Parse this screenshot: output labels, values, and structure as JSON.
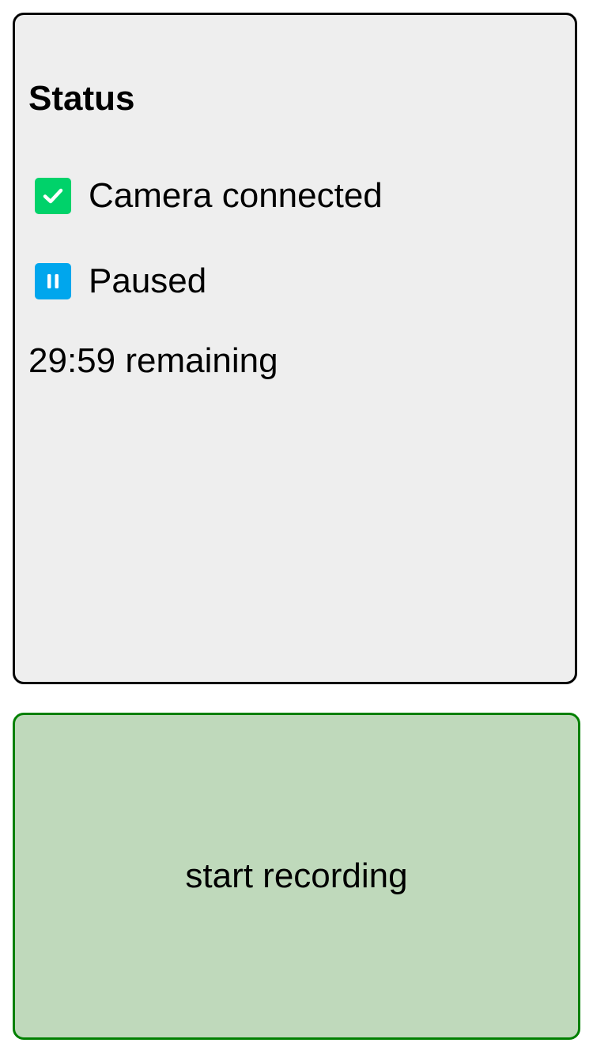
{
  "status": {
    "title": "Status",
    "items": [
      {
        "label": "Camera connected",
        "icon": "check-icon",
        "color": "#00d26a"
      },
      {
        "label": "Paused",
        "icon": "pause-icon",
        "color": "#00a6ed"
      }
    ],
    "timer": "29:59 remaining"
  },
  "action": {
    "label": "start recording",
    "background": "#bfd9bb",
    "border": "#008000"
  }
}
